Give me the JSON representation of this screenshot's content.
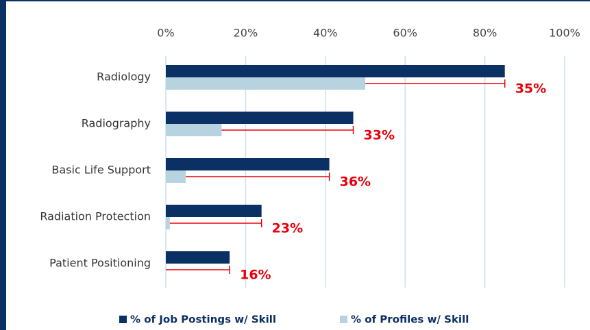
{
  "chart_data": {
    "type": "bar",
    "orientation": "horizontal",
    "categories": [
      "Radiology",
      "Radiography",
      "Basic Life Support",
      "Radiation Protection",
      "Patient Positioning"
    ],
    "series": [
      {
        "name": "% of Job Postings w/ Skill",
        "color": "#0b3064",
        "values": [
          85,
          47,
          41,
          24,
          16
        ]
      },
      {
        "name": "% of Profiles w/ Skill",
        "color": "#b7d3df",
        "values": [
          50,
          14,
          5,
          1,
          0
        ]
      }
    ],
    "gaps": {
      "color": "#e8000b",
      "values": [
        35,
        33,
        36,
        23,
        16
      ],
      "value_labels": [
        "35%",
        "33%",
        "36%",
        "23%",
        "16%"
      ]
    },
    "xlim": [
      0,
      100
    ],
    "xticks": [
      {
        "value": 0,
        "label": "0%"
      },
      {
        "value": 20,
        "label": "20%"
      },
      {
        "value": 40,
        "label": "40%"
      },
      {
        "value": 60,
        "label": "60%"
      },
      {
        "value": 80,
        "label": "80%"
      },
      {
        "value": 100,
        "label": "100%"
      }
    ],
    "grid": true,
    "legend": "bottom"
  }
}
